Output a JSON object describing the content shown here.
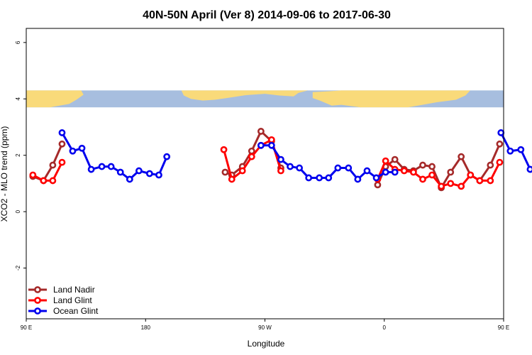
{
  "chart_data": {
    "type": "line",
    "title": "40N-50N April (Ver 8)   2014-09-06 to 2017-06-30",
    "xlabel": "Longitude",
    "ylabel": "XCO2 - MLO trend (ppm)",
    "xlim": [
      90,
      450
    ],
    "ylim": [
      -3.8,
      6.5
    ],
    "x_ticks": [
      {
        "value": 90,
        "label": "90 E"
      },
      {
        "value": 180,
        "label": "180"
      },
      {
        "value": 270,
        "label": "90 W"
      },
      {
        "value": 360,
        "label": "0"
      },
      {
        "value": 450,
        "label": "90 E"
      },
      {
        "value": 540,
        "label": "180"
      }
    ],
    "y_ticks": [
      {
        "value": -2,
        "label": "-2"
      },
      {
        "value": 0,
        "label": "0"
      },
      {
        "value": 2,
        "label": "2"
      },
      {
        "value": 4,
        "label": "4"
      },
      {
        "value": 6,
        "label": "6"
      }
    ],
    "map_band": {
      "y_bottom": 3.7,
      "y_top": 4.3,
      "ocean_color": "#a7bedf",
      "land_color": "#f9da7a"
    },
    "legend_position": "bottom-left",
    "series": [
      {
        "name": "Land Nadir",
        "color": "#a52a2a",
        "segments": [
          [
            [
              95,
              1.25
            ],
            [
              103,
              1.1
            ],
            [
              110,
              1.65
            ],
            [
              117,
              2.4
            ]
          ],
          [
            [
              240,
              1.4
            ],
            [
              245,
              1.3
            ],
            [
              253,
              1.6
            ],
            [
              260,
              2.15
            ],
            [
              267,
              2.85
            ],
            [
              275,
              2.5
            ],
            [
              282,
              1.55
            ]
          ],
          [
            [
              355,
              0.95
            ],
            [
              361,
              1.6
            ],
            [
              368,
              1.85
            ],
            [
              375,
              1.5
            ],
            [
              382,
              1.45
            ],
            [
              389,
              1.65
            ],
            [
              396,
              1.6
            ],
            [
              403,
              0.85
            ],
            [
              410,
              1.4
            ],
            [
              418,
              1.95
            ],
            [
              425,
              1.3
            ],
            [
              432,
              1.1
            ],
            [
              440,
              1.65
            ],
            [
              447,
              2.4
            ]
          ]
        ]
      },
      {
        "name": "Land Glint",
        "color": "#ff0000",
        "segments": [
          [
            [
              95,
              1.3
            ],
            [
              103,
              1.1
            ],
            [
              110,
              1.1
            ],
            [
              117,
              1.75
            ]
          ],
          [
            [
              239,
              2.2
            ],
            [
              245,
              1.15
            ],
            [
              253,
              1.45
            ],
            [
              260,
              1.95
            ],
            [
              267,
              2.35
            ],
            [
              275,
              2.55
            ],
            [
              282,
              1.45
            ]
          ],
          [
            [
              355,
              1.15
            ],
            [
              361,
              1.8
            ],
            [
              368,
              1.5
            ],
            [
              375,
              1.45
            ],
            [
              382,
              1.4
            ],
            [
              389,
              1.15
            ],
            [
              396,
              1.3
            ],
            [
              403,
              0.9
            ],
            [
              410,
              1.0
            ],
            [
              418,
              0.9
            ],
            [
              425,
              1.3
            ],
            [
              432,
              1.1
            ],
            [
              440,
              1.1
            ],
            [
              447,
              1.75
            ]
          ]
        ]
      },
      {
        "name": "Ocean Glint",
        "color": "#0000ee",
        "segments": [
          [
            [
              117,
              2.8
            ],
            [
              125,
              2.15
            ],
            [
              132,
              2.25
            ],
            [
              139,
              1.5
            ],
            [
              147,
              1.6
            ],
            [
              154,
              1.6
            ],
            [
              161,
              1.4
            ],
            [
              168,
              1.15
            ],
            [
              175,
              1.45
            ],
            [
              183,
              1.35
            ],
            [
              190,
              1.3
            ],
            [
              196,
              1.95
            ]
          ],
          [
            [
              267,
              2.35
            ],
            [
              275,
              2.35
            ],
            [
              282,
              1.85
            ],
            [
              289,
              1.6
            ],
            [
              296,
              1.55
            ],
            [
              303,
              1.2
            ],
            [
              311,
              1.2
            ],
            [
              318,
              1.2
            ],
            [
              325,
              1.55
            ],
            [
              333,
              1.55
            ],
            [
              340,
              1.15
            ],
            [
              347,
              1.45
            ],
            [
              354,
              1.2
            ],
            [
              361,
              1.4
            ],
            [
              368,
              1.4
            ]
          ],
          [
            [
              448,
              2.8
            ],
            [
              455,
              2.15
            ],
            [
              463,
              2.2
            ],
            [
              470,
              1.5
            ],
            [
              477,
              1.6
            ],
            [
              484,
              1.6
            ]
          ]
        ]
      }
    ]
  }
}
